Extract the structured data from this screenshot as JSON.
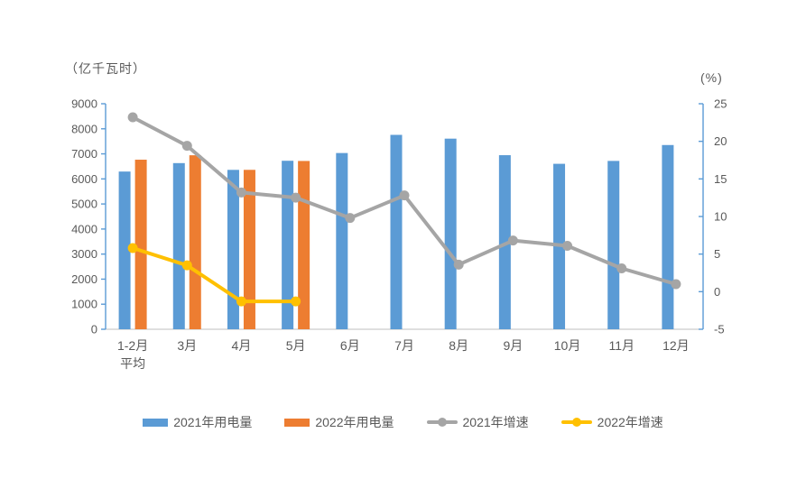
{
  "chart_data": {
    "type": "bar",
    "subtype": "combo-bar-line-dual-axis",
    "title": "",
    "categories": [
      "1-2月\n平均",
      "3月",
      "4月",
      "5月",
      "6月",
      "7月",
      "8月",
      "9月",
      "10月",
      "11月",
      "12月"
    ],
    "series": [
      {
        "name": "2021年用电量",
        "type": "bar",
        "axis": "left",
        "color": "#5B9BD5",
        "values": [
          6294,
          6631,
          6361,
          6724,
          7033,
          7758,
          7607,
          6947,
          6603,
          6718,
          7352
        ]
      },
      {
        "name": "2022年用电量",
        "type": "bar",
        "axis": "left",
        "color": "#ED7D31",
        "values": [
          6767,
          6944,
          6362,
          6716,
          null,
          null,
          null,
          null,
          null,
          null,
          null
        ]
      },
      {
        "name": "2021年增速",
        "type": "line",
        "axis": "right",
        "color": "#A5A5A5",
        "values": [
          23.2,
          19.4,
          13.2,
          12.5,
          9.8,
          12.8,
          3.6,
          6.8,
          6.1,
          3.1,
          1.0
        ]
      },
      {
        "name": "2022年增速",
        "type": "line",
        "axis": "right",
        "color": "#FFC000",
        "values": [
          5.8,
          3.5,
          -1.3,
          -1.3,
          null,
          null,
          null,
          null,
          null,
          null,
          null
        ]
      }
    ],
    "left_axis": {
      "title": "（亿千瓦时）",
      "min": 0,
      "max": 9000,
      "step": 1000
    },
    "right_axis": {
      "title": "(%)",
      "min": -5,
      "max": 25,
      "step": 5
    },
    "legend_position": "bottom",
    "grid": false,
    "background": "#FFFFFF",
    "axis_line_color": "#5B9BD5",
    "x_axis_line_color": "#BFBFBF",
    "tick_label_color": "#595959"
  }
}
